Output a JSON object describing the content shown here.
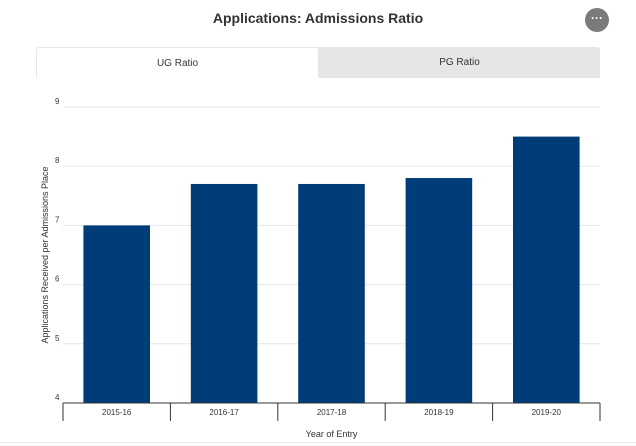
{
  "header": {
    "title": "Applications: Admissions Ratio",
    "menu_icon": "more-horizontal-icon",
    "menu_label": "···"
  },
  "tabs": [
    {
      "label": "UG Ratio",
      "active": true
    },
    {
      "label": "PG Ratio",
      "active": false
    }
  ],
  "colors": {
    "bar": "#003c78",
    "grid": "#e6e6e6",
    "axis": "#333333"
  },
  "chart_data": {
    "type": "bar",
    "title": "Applications: Admissions Ratio",
    "xlabel": "Year of Entry",
    "ylabel": "Applications Received per Admissions Place",
    "categories": [
      "2015-16",
      "2016-17",
      "2017-18",
      "2018-19",
      "2019-20"
    ],
    "values": [
      7.0,
      7.7,
      7.7,
      7.8,
      8.5
    ],
    "ylim": [
      4,
      9
    ],
    "yticks": [
      4,
      5,
      6,
      7,
      8,
      9
    ],
    "grid": true,
    "legend": "none"
  }
}
